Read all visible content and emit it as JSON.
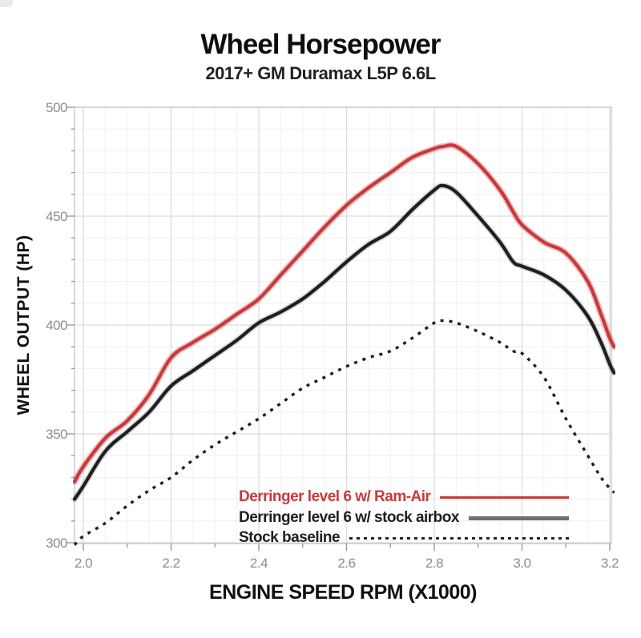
{
  "header": {
    "title": "Wheel Horsepower",
    "subtitle": "2017+ GM Duramax L5P 6.6L"
  },
  "chart_data": {
    "type": "line",
    "title": "Wheel Horsepower",
    "subtitle": "2017+ GM Duramax L5P 6.6L",
    "xlabel": "ENGINE SPEED RPM (X1000)",
    "ylabel": "WHEEL OUTPUT (HP)",
    "xlim": [
      1.98,
      3.22
    ],
    "ylim": [
      297,
      500
    ],
    "x_ticks": [
      2.0,
      2.2,
      2.4,
      2.6,
      2.8,
      3.0,
      3.2
    ],
    "y_ticks": [
      300,
      350,
      400,
      450,
      500
    ],
    "grid": true,
    "minor_grid": {
      "x_step": 0.05,
      "y_step": 10
    },
    "legend_position": "inside-bottom",
    "x": [
      1.98,
      2.0,
      2.05,
      2.1,
      2.15,
      2.2,
      2.25,
      2.3,
      2.35,
      2.4,
      2.45,
      2.5,
      2.55,
      2.6,
      2.65,
      2.7,
      2.75,
      2.8,
      2.82,
      2.85,
      2.9,
      2.95,
      2.98,
      3.0,
      3.05,
      3.1,
      3.15,
      3.18,
      3.2,
      3.21
    ],
    "series": [
      {
        "name": "Derringer level 6 w/ Ram-Air",
        "color": "#c9393b",
        "style": "solid",
        "peak_hp": 482,
        "values": [
          328,
          335,
          348,
          356,
          368,
          385,
          392,
          398,
          405,
          412,
          423,
          434,
          445,
          455,
          463,
          470,
          477,
          481,
          482,
          482,
          474,
          462,
          452,
          446,
          438,
          433,
          420,
          405,
          394,
          390
        ]
      },
      {
        "name": "Derringer level 6 w/ stock airbox",
        "color": "#1f1f1f",
        "style": "solid",
        "peak_hp": 464,
        "values": [
          320,
          326,
          342,
          351,
          360,
          372,
          379,
          386,
          393,
          401,
          406,
          412,
          420,
          429,
          437,
          443,
          453,
          462,
          464,
          461,
          450,
          438,
          429,
          427,
          423,
          416,
          404,
          392,
          382,
          378
        ]
      },
      {
        "name": "Stock baseline",
        "color": "#1f1f1f",
        "style": "dashed",
        "peak_hp": 402,
        "values": [
          299,
          303,
          309,
          317,
          324,
          330,
          338,
          345,
          351,
          357,
          364,
          371,
          376,
          381,
          385,
          388,
          394,
          401,
          402,
          401,
          397,
          392,
          388,
          387,
          376,
          357,
          340,
          330,
          325,
          323
        ]
      }
    ]
  }
}
